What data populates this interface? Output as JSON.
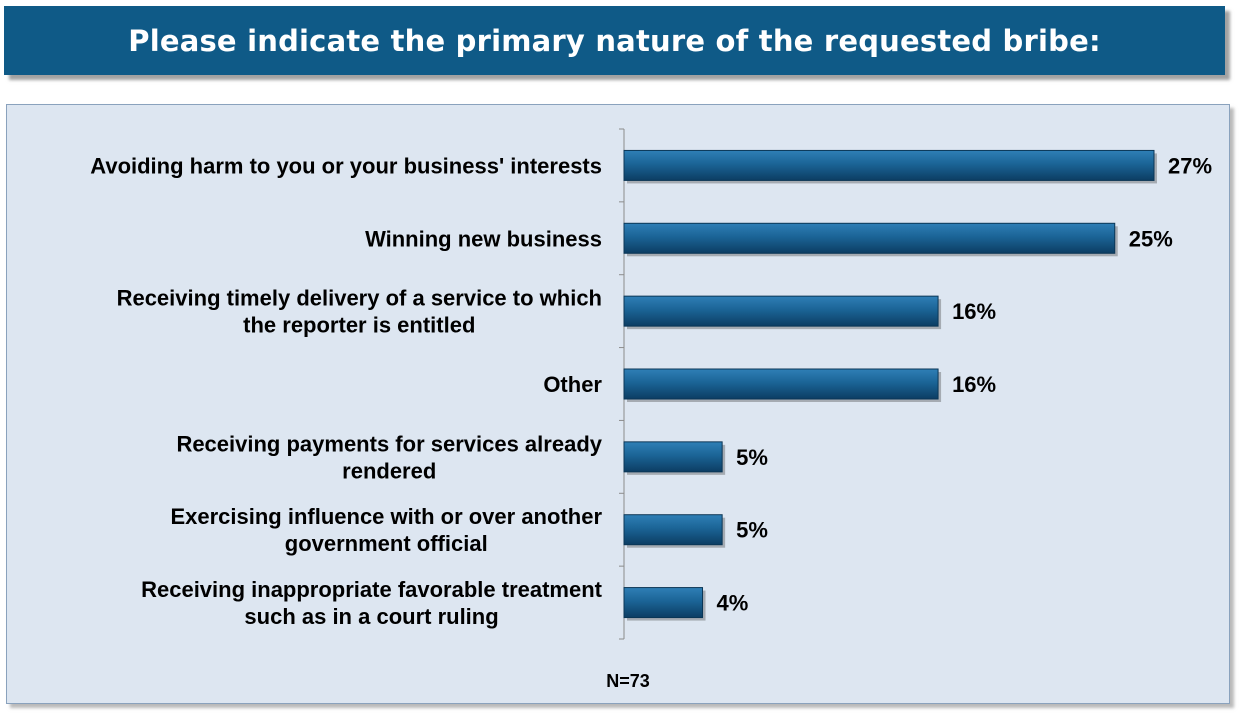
{
  "header": {
    "title": "Please indicate the primary nature of the requested bribe:"
  },
  "chart_data": {
    "type": "bar",
    "orientation": "horizontal",
    "title": "Please indicate the primary nature of the requested bribe:",
    "categories": [
      [
        "Avoiding harm to you or your business' interests"
      ],
      [
        "Winning new business"
      ],
      [
        "Receiving timely delivery of a service to which",
        "the reporter is entitled"
      ],
      [
        "Other"
      ],
      [
        "Receiving payments for services already",
        "rendered"
      ],
      [
        "Exercising influence with or over another",
        "government official"
      ],
      [
        "Receiving inappropriate favorable treatment",
        "such as in a court ruling"
      ]
    ],
    "values": [
      27,
      25,
      16,
      16,
      5,
      5,
      4
    ],
    "value_labels": [
      "27%",
      "25%",
      "16%",
      "16%",
      "5%",
      "5%",
      "4%"
    ],
    "unit": "%",
    "xlim": [
      0,
      27
    ],
    "grid": false,
    "legend": "none",
    "bar_color": "#1b6496",
    "note": "N=73"
  }
}
